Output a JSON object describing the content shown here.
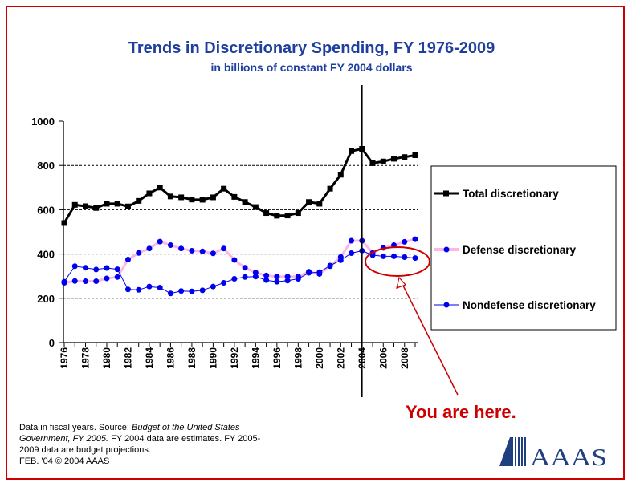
{
  "chart_data": {
    "type": "line",
    "title": "Trends in Discretionary Spending, FY 1976-2009",
    "subtitle": "in billions of constant FY 2004 dollars",
    "xlabel": "",
    "ylabel": "",
    "ylim": [
      0,
      1000
    ],
    "yticks": [
      0,
      200,
      400,
      600,
      800,
      1000
    ],
    "xticks": [
      "1976",
      "1978",
      "1980",
      "1982",
      "1984",
      "1986",
      "1988",
      "1990",
      "1992",
      "1994",
      "1996",
      "1998",
      "2000",
      "2002",
      "2004",
      "2006",
      "2008"
    ],
    "x": [
      1976,
      1977,
      1978,
      1979,
      1980,
      1981,
      1982,
      1983,
      1984,
      1985,
      1986,
      1987,
      1988,
      1989,
      1990,
      1991,
      1992,
      1993,
      1994,
      1995,
      1996,
      1997,
      1998,
      1999,
      2000,
      2001,
      2002,
      2003,
      2004,
      2005,
      2006,
      2007,
      2008,
      2009
    ],
    "series": [
      {
        "name": "Total discretionary",
        "color": "#000000",
        "values": [
          540,
          622,
          616,
          608,
          627,
          627,
          615,
          640,
          674,
          700,
          660,
          656,
          646,
          645,
          656,
          695,
          658,
          635,
          612,
          585,
          573,
          574,
          585,
          635,
          627,
          695,
          758,
          865,
          875,
          810,
          818,
          830,
          838,
          846
        ]
      },
      {
        "name": "Defense discretionary",
        "color": "#ffb6e6",
        "values": [
          270,
          278,
          277,
          277,
          290,
          296,
          375,
          405,
          425,
          456,
          440,
          425,
          415,
          412,
          403,
          425,
          373,
          338,
          316,
          303,
          298,
          298,
          298,
          320,
          310,
          345,
          387,
          460,
          460,
          405,
          428,
          440,
          455,
          467
        ]
      },
      {
        "name": "Nondefense discretionary",
        "color": "#0000ee",
        "values": [
          275,
          345,
          338,
          330,
          337,
          331,
          240,
          238,
          253,
          248,
          222,
          233,
          231,
          236,
          253,
          270,
          288,
          296,
          298,
          282,
          275,
          280,
          288,
          315,
          318,
          348,
          372,
          404,
          415,
          395,
          390,
          390,
          386,
          382
        ]
      }
    ],
    "grid": "dashed horizontal at 200, 400, 600, 800",
    "marker_line_year": 2004,
    "annotation": "You are here."
  },
  "footnote": {
    "line1_prefix": "Data in fiscal years. Source: ",
    "line1_italic": "Budget of the United States",
    "line2_italic": "Government, FY 2005.",
    "line2_rest": " FY 2004 data are estimates. FY 2005-",
    "line3": "2009 data are budget projections.",
    "line4": "FEB. '04 © 2004 AAAS"
  },
  "logo": {
    "text": "AAAS"
  },
  "colors": {
    "frame": "#cc0000",
    "title": "#1f3f9f",
    "annotation": "#cc0000"
  }
}
